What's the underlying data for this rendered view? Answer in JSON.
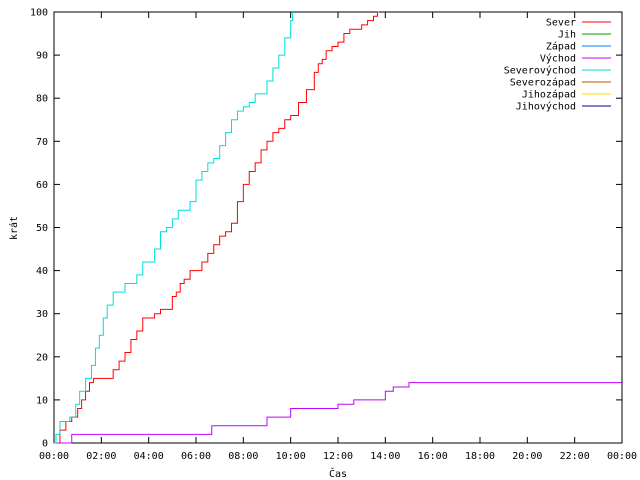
{
  "chart_data": {
    "type": "line",
    "title": "",
    "xlabel": "Čas",
    "ylabel": "krát",
    "xlim_minutes": [
      0,
      1440
    ],
    "ylim": [
      0,
      100
    ],
    "x_tick_labels": [
      "00:00",
      "02:00",
      "04:00",
      "06:00",
      "08:00",
      "10:00",
      "12:00",
      "14:00",
      "16:00",
      "18:00",
      "20:00",
      "22:00",
      "00:00"
    ],
    "y_tick_labels": [
      "0",
      "10",
      "20",
      "30",
      "40",
      "50",
      "60",
      "70",
      "80",
      "90",
      "100"
    ],
    "grid": false,
    "legend_position": "top-right",
    "series": [
      {
        "name": "Sever",
        "color": "#ff0000",
        "x": [
          "00:00",
          "00:15",
          "00:30",
          "00:45",
          "01:00",
          "01:10",
          "01:20",
          "01:30",
          "01:40",
          "01:50",
          "02:00",
          "02:30",
          "02:45",
          "03:00",
          "03:15",
          "03:30",
          "03:45",
          "04:00",
          "04:15",
          "04:30",
          "05:00",
          "05:10",
          "05:20",
          "05:30",
          "05:45",
          "06:00",
          "06:15",
          "06:30",
          "06:45",
          "07:00",
          "07:15",
          "07:30",
          "07:45",
          "08:00",
          "08:15",
          "08:30",
          "08:45",
          "09:00",
          "09:15",
          "09:30",
          "09:45",
          "10:00",
          "10:20",
          "10:40",
          "11:00",
          "11:10",
          "11:20",
          "11:30",
          "11:45",
          "12:00",
          "12:15",
          "12:30",
          "12:45",
          "13:00",
          "13:15",
          "13:30",
          "13:40",
          "13:45"
        ],
        "y": [
          0,
          3,
          5,
          6,
          8,
          10,
          12,
          14,
          15,
          15,
          15,
          17,
          19,
          21,
          24,
          26,
          29,
          29,
          30,
          31,
          34,
          35,
          37,
          38,
          40,
          40,
          42,
          44,
          46,
          48,
          49,
          51,
          56,
          60,
          63,
          65,
          68,
          70,
          72,
          73,
          75,
          76,
          79,
          82,
          86,
          88,
          89,
          91,
          92,
          93,
          95,
          96,
          96,
          97,
          98,
          99,
          100,
          100
        ]
      },
      {
        "name": "Jih",
        "color": "#00a000",
        "x": [],
        "y": []
      },
      {
        "name": "Západ",
        "color": "#0080ff",
        "x": [],
        "y": []
      },
      {
        "name": "Východ",
        "color": "#c000ff",
        "x": [
          "00:00",
          "00:45",
          "01:00",
          "06:20",
          "06:40",
          "08:40",
          "09:00",
          "09:40",
          "10:00",
          "11:40",
          "12:00",
          "12:40",
          "13:00",
          "14:00",
          "14:20",
          "15:00",
          "23:59"
        ],
        "y": [
          0,
          2,
          2,
          2,
          4,
          4,
          6,
          6,
          8,
          8,
          9,
          10,
          10,
          12,
          13,
          14,
          14
        ]
      },
      {
        "name": "Severovýchod",
        "color": "#00dddd",
        "x": [
          "00:00",
          "00:05",
          "00:15",
          "00:25",
          "00:40",
          "00:55",
          "01:05",
          "01:20",
          "01:35",
          "01:45",
          "01:55",
          "02:05",
          "02:15",
          "02:30",
          "02:45",
          "03:00",
          "03:15",
          "03:30",
          "03:45",
          "04:00",
          "04:15",
          "04:30",
          "04:45",
          "05:00",
          "05:15",
          "05:30",
          "05:45",
          "06:00",
          "06:15",
          "06:30",
          "06:45",
          "07:00",
          "07:15",
          "07:30",
          "07:45",
          "08:00",
          "08:15",
          "08:30",
          "08:45",
          "09:00",
          "09:15",
          "09:30",
          "09:45",
          "10:00",
          "10:05"
        ],
        "y": [
          0,
          2,
          5,
          5,
          6,
          9,
          12,
          15,
          18,
          22,
          25,
          29,
          32,
          35,
          35,
          37,
          37,
          39,
          42,
          42,
          45,
          49,
          50,
          52,
          54,
          54,
          56,
          61,
          63,
          65,
          66,
          69,
          72,
          75,
          77,
          78,
          79,
          81,
          81,
          84,
          87,
          90,
          94,
          98,
          100
        ]
      },
      {
        "name": "Severozápad",
        "color": "#c05000",
        "x": [],
        "y": []
      },
      {
        "name": "Jihozápad",
        "color": "#ffd700",
        "x": [],
        "y": []
      },
      {
        "name": "Jihovýchod",
        "color": "#000090",
        "x": [],
        "y": []
      }
    ]
  }
}
